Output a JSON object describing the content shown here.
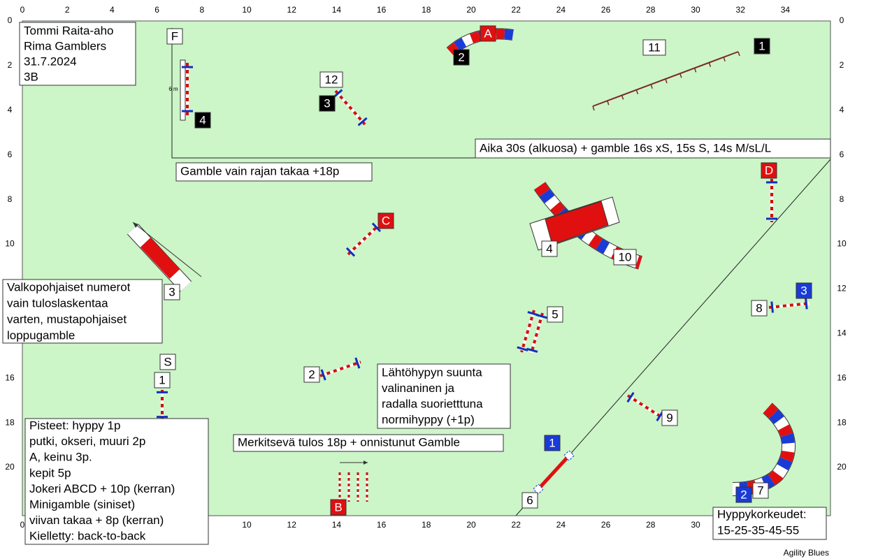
{
  "header": {
    "lines": [
      "Tommi Raita-aho",
      "Rima Gamblers",
      "31.7.2024",
      "3B"
    ]
  },
  "axes": {
    "x_ticks": [
      0,
      2,
      4,
      6,
      8,
      10,
      12,
      14,
      16,
      18,
      20,
      22,
      24,
      26,
      28,
      30,
      32,
      34
    ],
    "y_ticks": [
      0,
      2,
      4,
      6,
      8,
      10,
      12,
      14,
      16,
      18,
      20
    ]
  },
  "notes": {
    "time": "Aika 30s (alkuosa) + gamble 16s xS, 15s S, 14s M/sL/L",
    "gamble_line": "Gamble vain rajan takaa +18p",
    "numbers": [
      "Valkopohjaiset numerot",
      "vain tuloslaskentaa",
      "varten,  mustapohjaiset",
      "loppugamble"
    ],
    "start": [
      "Lähtöhypyn suunta",
      "valinaninen  ja",
      "radalla suorietttuna",
      "normihyppy (+1p)"
    ],
    "result": "Merkitsevä tulos 18p + onnistunut Gamble",
    "points": [
      "Pisteet: hyppy 1p",
      "putki, okseri, muuri 2p",
      "A, keinu 3p.",
      "kepit 5p",
      "Jokeri ABCD + 10p (kerran)",
      "Minigamble (siniset)",
      "viivan takaa + 8p (kerran)",
      "Kielletty: back-to-back"
    ],
    "heights": [
      "Hyppykorkeudet:",
      "15-25-35-45-55"
    ],
    "credit": "Agility Blues",
    "wall_size": "6 m"
  },
  "markers": {
    "white": [
      "F",
      "11",
      "12",
      "4",
      "3",
      "10",
      "5",
      "8",
      "2",
      "9",
      "6",
      "7",
      "S",
      "1"
    ],
    "black": [
      "1",
      "2",
      "3",
      "4"
    ],
    "red": [
      "A",
      "B",
      "C",
      "D"
    ],
    "blue": [
      "1",
      "2",
      "3"
    ]
  }
}
